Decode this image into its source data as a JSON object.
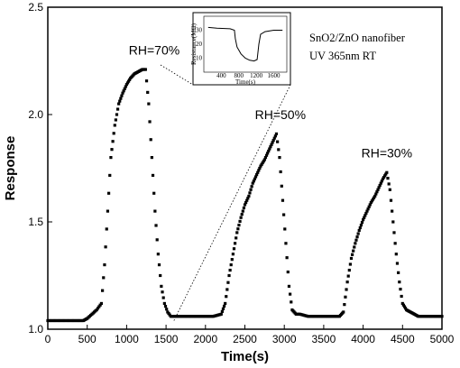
{
  "chart_data": {
    "type": "scatter",
    "title": "",
    "xlabel": "Time(s)",
    "ylabel": "Response",
    "xlim": [
      0,
      5000
    ],
    "ylim": [
      1.0,
      2.5
    ],
    "xticks": [
      0,
      500,
      1000,
      1500,
      2000,
      2500,
      3000,
      3500,
      4000,
      4500,
      5000
    ],
    "yticks": [
      1.0,
      1.5,
      2.0,
      2.5
    ],
    "grid": false,
    "legend_lines": [
      "SnO2/ZnO nanofiber",
      "UV 365nm RT"
    ],
    "series": [
      {
        "values": [
          [
            0,
            1.04
          ],
          [
            300,
            1.04
          ],
          [
            450,
            1.04
          ],
          [
            500,
            1.05
          ],
          [
            560,
            1.07
          ],
          [
            620,
            1.09
          ],
          [
            680,
            1.12
          ],
          [
            720,
            1.3
          ],
          [
            760,
            1.55
          ],
          [
            800,
            1.8
          ],
          [
            850,
            1.95
          ],
          [
            900,
            2.05
          ],
          [
            950,
            2.1
          ],
          [
            1000,
            2.14
          ],
          [
            1050,
            2.17
          ],
          [
            1100,
            2.19
          ],
          [
            1150,
            2.2
          ],
          [
            1200,
            2.21
          ],
          [
            1240,
            2.21
          ],
          [
            1280,
            2.05
          ],
          [
            1320,
            1.8
          ],
          [
            1360,
            1.55
          ],
          [
            1400,
            1.35
          ],
          [
            1440,
            1.2
          ],
          [
            1480,
            1.12
          ],
          [
            1520,
            1.08
          ],
          [
            1560,
            1.06
          ],
          [
            1600,
            1.06
          ],
          [
            1700,
            1.06
          ],
          [
            1800,
            1.06
          ],
          [
            1900,
            1.06
          ],
          [
            2000,
            1.06
          ],
          [
            2100,
            1.06
          ],
          [
            2200,
            1.07
          ],
          [
            2250,
            1.12
          ],
          [
            2300,
            1.25
          ],
          [
            2350,
            1.35
          ],
          [
            2400,
            1.45
          ],
          [
            2450,
            1.52
          ],
          [
            2500,
            1.58
          ],
          [
            2550,
            1.62
          ],
          [
            2600,
            1.68
          ],
          [
            2650,
            1.72
          ],
          [
            2700,
            1.76
          ],
          [
            2750,
            1.79
          ],
          [
            2800,
            1.83
          ],
          [
            2850,
            1.87
          ],
          [
            2900,
            1.91
          ],
          [
            2940,
            1.8
          ],
          [
            2980,
            1.6
          ],
          [
            3020,
            1.4
          ],
          [
            3060,
            1.2
          ],
          [
            3100,
            1.09
          ],
          [
            3150,
            1.07
          ],
          [
            3200,
            1.07
          ],
          [
            3300,
            1.06
          ],
          [
            3400,
            1.06
          ],
          [
            3500,
            1.06
          ],
          [
            3600,
            1.06
          ],
          [
            3700,
            1.06
          ],
          [
            3750,
            1.08
          ],
          [
            3800,
            1.22
          ],
          [
            3850,
            1.33
          ],
          [
            3900,
            1.4
          ],
          [
            3950,
            1.46
          ],
          [
            4000,
            1.51
          ],
          [
            4050,
            1.55
          ],
          [
            4100,
            1.59
          ],
          [
            4150,
            1.62
          ],
          [
            4200,
            1.66
          ],
          [
            4250,
            1.7
          ],
          [
            4300,
            1.73
          ],
          [
            4340,
            1.65
          ],
          [
            4380,
            1.5
          ],
          [
            4420,
            1.35
          ],
          [
            4460,
            1.22
          ],
          [
            4500,
            1.12
          ],
          [
            4550,
            1.09
          ],
          [
            4600,
            1.08
          ],
          [
            4650,
            1.07
          ],
          [
            4700,
            1.06
          ],
          [
            4800,
            1.06
          ],
          [
            4900,
            1.06
          ],
          [
            5000,
            1.06
          ]
        ]
      }
    ],
    "annotations": [
      {
        "text": "RH=70%",
        "x": 1350,
        "y": 2.28
      },
      {
        "text": "RH=50%",
        "x": 2950,
        "y": 1.98
      },
      {
        "text": "RH=30%",
        "x": 4300,
        "y": 1.8
      }
    ],
    "inset": {
      "xlabel": "Time(s)",
      "ylabel": "Resistance(MΩ)",
      "xticks": [
        400,
        800,
        1200,
        1600
      ],
      "yticks": [
        10,
        20,
        30
      ]
    }
  }
}
